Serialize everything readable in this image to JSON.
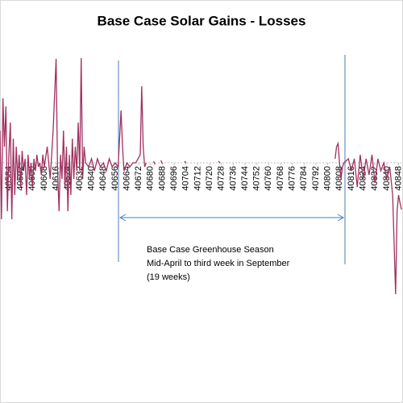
{
  "chart_data": {
    "type": "line",
    "title": "Base Case Solar Gains - Losses",
    "annotations": [
      "Base Case Greenhouse Season",
      "Mid-April to third week in September",
      "(19 weeks)"
    ],
    "x": [
      40578,
      40579,
      40580,
      40581,
      40582,
      40583,
      40584,
      40585,
      40586,
      40587,
      40588,
      40589,
      40590,
      40591,
      40592,
      40593,
      40594,
      40595,
      40596,
      40597,
      40598,
      40599,
      40600,
      40601,
      40602,
      40603,
      40604,
      40605,
      40606,
      40607,
      40608,
      40610,
      40612,
      40614,
      40616,
      40617,
      40618,
      40619,
      40620,
      40621,
      40622,
      40623,
      40624,
      40625,
      40626,
      40627,
      40628,
      40629,
      40630,
      40631,
      40632,
      40633,
      40634,
      40635,
      40636,
      40638,
      40640,
      40642,
      40644,
      40646,
      40648,
      40650,
      40652,
      40654,
      40656,
      40658,
      40660,
      40661,
      40662,
      40664,
      40666,
      40668,
      40670,
      40673,
      40674,
      40675,
      40676,
      40677,
      40678,
      40682,
      40683,
      40684,
      40687,
      40688,
      40689,
      40703,
      40704,
      40705,
      40726,
      40727,
      40728,
      40805,
      40806,
      40807,
      40808,
      40809,
      40810,
      40811,
      40814,
      40816,
      40818,
      40820,
      40822,
      40824,
      40826,
      40828,
      40830,
      40832,
      40834,
      40836,
      40838,
      40840,
      40842,
      40844,
      40846,
      40847,
      40848,
      40849,
      40850
    ],
    "series": [
      {
        "color": "#a0305f",
        "values": [
          40,
          -70,
          80,
          20,
          70,
          -60,
          10,
          50,
          -70,
          30,
          -40,
          20,
          -20,
          10,
          -30,
          15,
          -10,
          5,
          -40,
          10,
          -20,
          0,
          -30,
          5,
          -10,
          10,
          -5,
          0,
          -15,
          10,
          -5,
          20,
          -20,
          40,
          129,
          -10,
          -60,
          10,
          -20,
          40,
          -30,
          20,
          -60,
          10,
          -40,
          30,
          -20,
          20,
          -10,
          50,
          -10,
          130,
          -20,
          20,
          0,
          -5,
          5,
          -10,
          5,
          -5,
          0,
          -10,
          5,
          -5,
          0,
          -5,
          65,
          20,
          -10,
          0,
          -5,
          0,
          0,
          10,
          95,
          20,
          -5,
          0,
          null,
          2,
          -2,
          null,
          3,
          -1,
          null,
          2,
          0,
          null,
          2,
          0,
          null,
          5,
          20,
          24,
          0,
          -20,
          -5,
          0,
          5,
          -10,
          5,
          -30,
          10,
          -20,
          5,
          -15,
          10,
          -25,
          5,
          -10,
          0,
          -20,
          -5,
          -40,
          -163,
          -60,
          -40,
          -50,
          -58
        ]
      }
    ],
    "xlim": [
      40578,
      40851
    ],
    "xticks": [
      40584,
      40592,
      40600,
      40608,
      40616,
      40624,
      40632,
      40640,
      40648,
      40656,
      40664,
      40672,
      40680,
      40688,
      40696,
      40704,
      40712,
      40720,
      40728,
      40736,
      40744,
      40752,
      40760,
      40768,
      40776,
      40784,
      40792,
      40800,
      40808,
      40816,
      40824,
      40832,
      40840,
      40848
    ],
    "ylim": [
      -198,
      142
    ]
  }
}
